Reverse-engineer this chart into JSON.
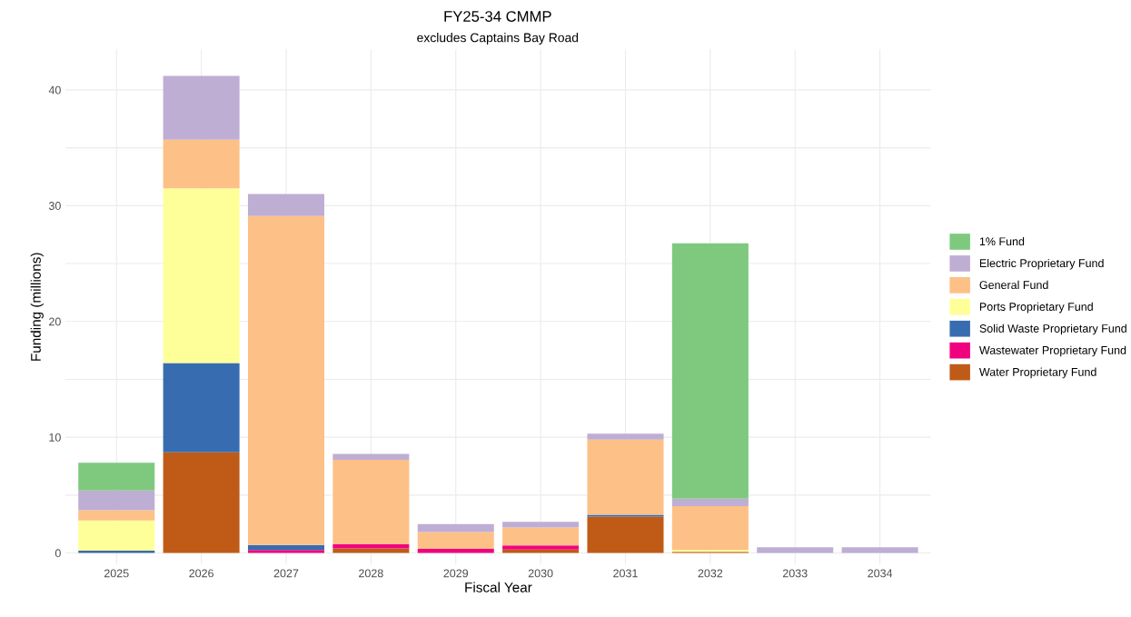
{
  "chart_data": {
    "type": "bar",
    "title": "FY25-34 CMMP",
    "subtitle": "excludes Captains Bay Road",
    "xlabel": "Fiscal Year",
    "ylabel": "Funding (millions)",
    "categories": [
      "2025",
      "2026",
      "2027",
      "2028",
      "2029",
      "2030",
      "2031",
      "2032",
      "2033",
      "2034"
    ],
    "stacked": true,
    "legend": "right",
    "grid": true,
    "ylim": [
      -1,
      43.5
    ],
    "yticks": [
      0,
      {
        "value": 5,
        "label": null
      },
      10,
      {
        "value": 15,
        "label": null
      },
      20,
      {
        "value": 25,
        "label": null
      },
      30,
      {
        "value": 35,
        "label": null
      },
      40
    ],
    "series": [
      {
        "name": "Water Proprietary Fund",
        "color": "#bf5b17",
        "values": [
          null,
          8.7,
          null,
          0.4,
          null,
          0.3,
          3.15,
          0.1,
          null,
          null
        ]
      },
      {
        "name": "Wastewater Proprietary Fund",
        "color": "#f0027f",
        "values": [
          null,
          null,
          0.25,
          0.35,
          0.35,
          0.35,
          null,
          null,
          null,
          null
        ]
      },
      {
        "name": "Solid Waste Proprietary Fund",
        "color": "#386cb0",
        "values": [
          0.2,
          7.7,
          0.45,
          null,
          null,
          null,
          0.15,
          null,
          null,
          null
        ]
      },
      {
        "name": "Ports Proprietary Fund",
        "color": "#ffff99",
        "values": [
          2.6,
          15.1,
          null,
          null,
          null,
          null,
          null,
          0.15,
          null,
          null
        ]
      },
      {
        "name": "General Fund",
        "color": "#fdc086",
        "values": [
          0.9,
          4.2,
          28.4,
          7.3,
          1.45,
          1.55,
          6.5,
          3.8,
          null,
          null
        ]
      },
      {
        "name": "Electric Proprietary Fund",
        "color": "#beaed4",
        "values": [
          1.7,
          5.5,
          1.9,
          0.5,
          0.7,
          0.5,
          0.5,
          0.65,
          0.5,
          0.5
        ]
      },
      {
        "name": "1% Fund",
        "color": "#7fc97f",
        "values": [
          2.4,
          null,
          null,
          null,
          null,
          null,
          null,
          22.05,
          null,
          null
        ]
      }
    ]
  }
}
